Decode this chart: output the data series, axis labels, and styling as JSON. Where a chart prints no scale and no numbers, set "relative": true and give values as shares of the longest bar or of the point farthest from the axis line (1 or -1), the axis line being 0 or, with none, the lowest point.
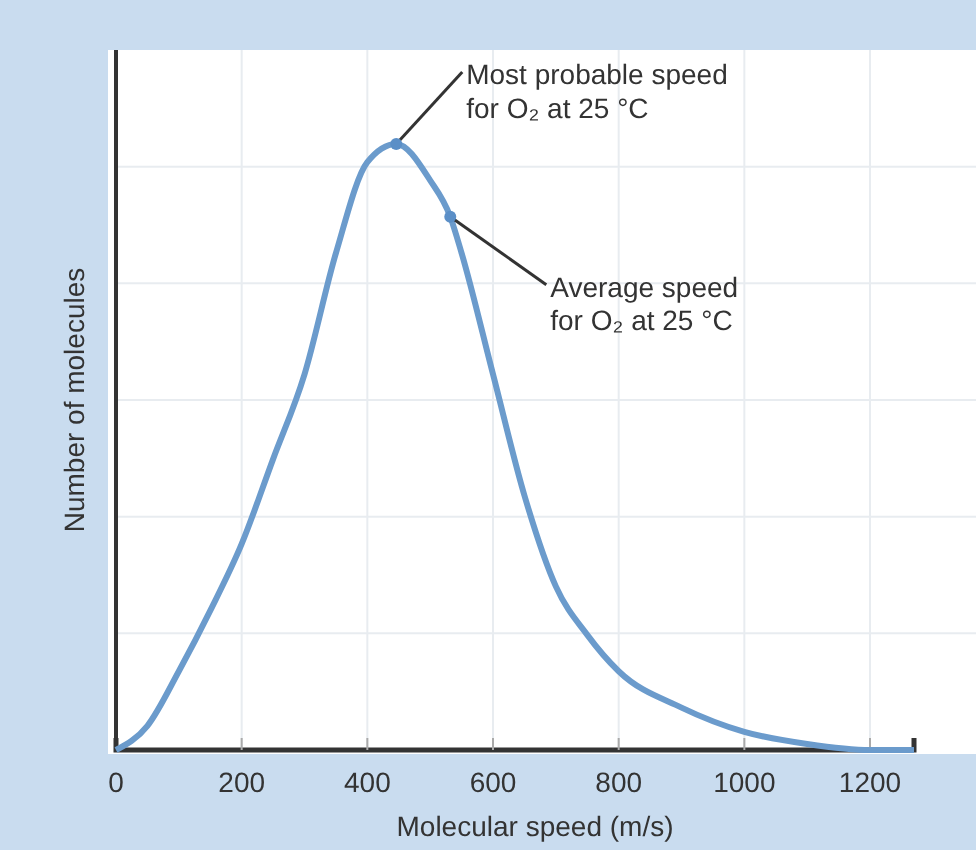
{
  "chart_data": {
    "type": "line",
    "relative": true,
    "xlabel": "Molecular speed (m/s)",
    "ylabel": "Number of molecules",
    "xlim": [
      0,
      1270
    ],
    "xticks": [
      0,
      200,
      400,
      600,
      800,
      1000,
      1200
    ],
    "grid": true,
    "tick_labels": "x",
    "line_style": "solid",
    "x": [
      0,
      50,
      100,
      150,
      200,
      250,
      300,
      350,
      400,
      446,
      500,
      532,
      550,
      600,
      650,
      700,
      750,
      800,
      900,
      1000,
      1100,
      1200,
      1270
    ],
    "series": [
      {
        "color": "#6b9bcc",
        "values": [
          0,
          0.04,
          0.13,
          0.23,
          0.34,
          0.48,
          0.62,
          0.82,
          0.97,
          1,
          0.94,
          0.88,
          0.82,
          0.62,
          0.42,
          0.27,
          0.19,
          0.13,
          0.07,
          0.03,
          0.01,
          0,
          0
        ]
      }
    ],
    "annotations": [
      {
        "text": "Most probable speed\nfor O₂ at 25 °C",
        "x": 446,
        "y": 1
      },
      {
        "text": "Average speed\nfor O₂ at 25 °C",
        "x": 532,
        "y": 0.88
      }
    ]
  }
}
